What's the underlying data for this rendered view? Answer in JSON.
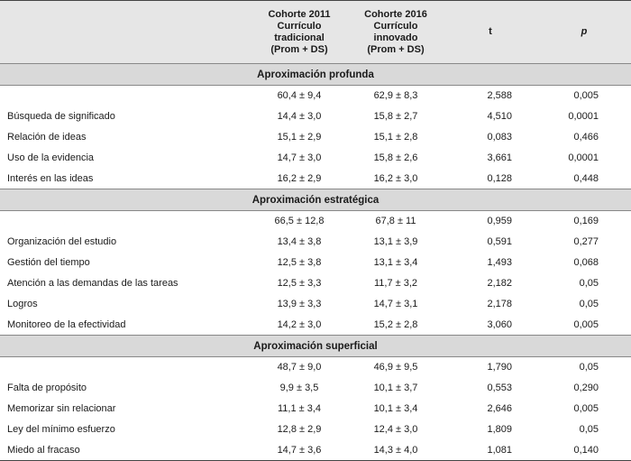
{
  "header": {
    "col1_line1": "Cohorte 2011",
    "col1_line2": "Currículo",
    "col1_line3": "tradicional",
    "col1_line4": "(Prom + DS)",
    "col2_line1": "Cohorte 2016",
    "col2_line2": "Currículo",
    "col2_line3": "innovado",
    "col2_line4": "(Prom + DS)",
    "t": "t",
    "p": "p"
  },
  "groups": [
    {
      "title": "Aproximación profunda",
      "rows": [
        {
          "label": "",
          "a": "60,4 ± 9,4",
          "b": "62,9 ± 8,3",
          "t": "2,588",
          "p": "0,005"
        },
        {
          "label": "Búsqueda de significado",
          "a": "14,4 ± 3,0",
          "b": "15,8 ± 2,7",
          "t": "4,510",
          "p": "0,0001"
        },
        {
          "label": "Relación de ideas",
          "a": "15,1 ± 2,9",
          "b": "15,1 ± 2,8",
          "t": "0,083",
          "p": "0,466"
        },
        {
          "label": "Uso de la evidencia",
          "a": "14,7 ± 3,0",
          "b": "15,8 ± 2,6",
          "t": "3,661",
          "p": "0,0001"
        },
        {
          "label": "Interés en las ideas",
          "a": "16,2 ± 2,9",
          "b": "16,2 ± 3,0",
          "t": "0,128",
          "p": "0,448"
        }
      ]
    },
    {
      "title": "Aproximación estratégica",
      "rows": [
        {
          "label": "",
          "a": "66,5 ± 12,8",
          "b": "67,8 ± 11",
          "t": "0,959",
          "p": "0,169"
        },
        {
          "label": "Organización del estudio",
          "a": "13,4 ± 3,8",
          "b": "13,1 ± 3,9",
          "t": "0,591",
          "p": "0,277"
        },
        {
          "label": "Gestión del tiempo",
          "a": "12,5 ± 3,8",
          "b": "13,1 ± 3,4",
          "t": "1,493",
          "p": "0,068"
        },
        {
          "label": "Atención a las demandas de las tareas",
          "a": "12,5 ± 3,3",
          "b": "11,7 ± 3,2",
          "t": "2,182",
          "p": "0,05"
        },
        {
          "label": "Logros",
          "a": "13,9 ± 3,3",
          "b": "14,7 ± 3,1",
          "t": "2,178",
          "p": "0,05"
        },
        {
          "label": "Monitoreo de la efectividad",
          "a": "14,2 ± 3,0",
          "b": "15,2 ± 2,8",
          "t": "3,060",
          "p": "0,005"
        }
      ]
    },
    {
      "title": "Aproximación superficial",
      "rows": [
        {
          "label": "",
          "a": "48,7 ± 9,0",
          "b": "46,9 ± 9,5",
          "t": "1,790",
          "p": "0,05"
        },
        {
          "label": "Falta de propósito",
          "a": "9,9 ± 3,5",
          "b": "10,1 ± 3,7",
          "t": "0,553",
          "p": "0,290"
        },
        {
          "label": "Memorizar sin relacionar",
          "a": "11,1 ± 3,4",
          "b": "10,1 ± 3,4",
          "t": "2,646",
          "p": "0,005"
        },
        {
          "label": "Ley del mínimo esfuerzo",
          "a": "12,8 ± 2,9",
          "b": "12,4 ± 3,0",
          "t": "1,809",
          "p": "0,05"
        },
        {
          "label": "Miedo al fracaso",
          "a": "14,7 ± 3,6",
          "b": "14,3 ± 4,0",
          "t": "1,081",
          "p": "0,140"
        }
      ]
    }
  ]
}
